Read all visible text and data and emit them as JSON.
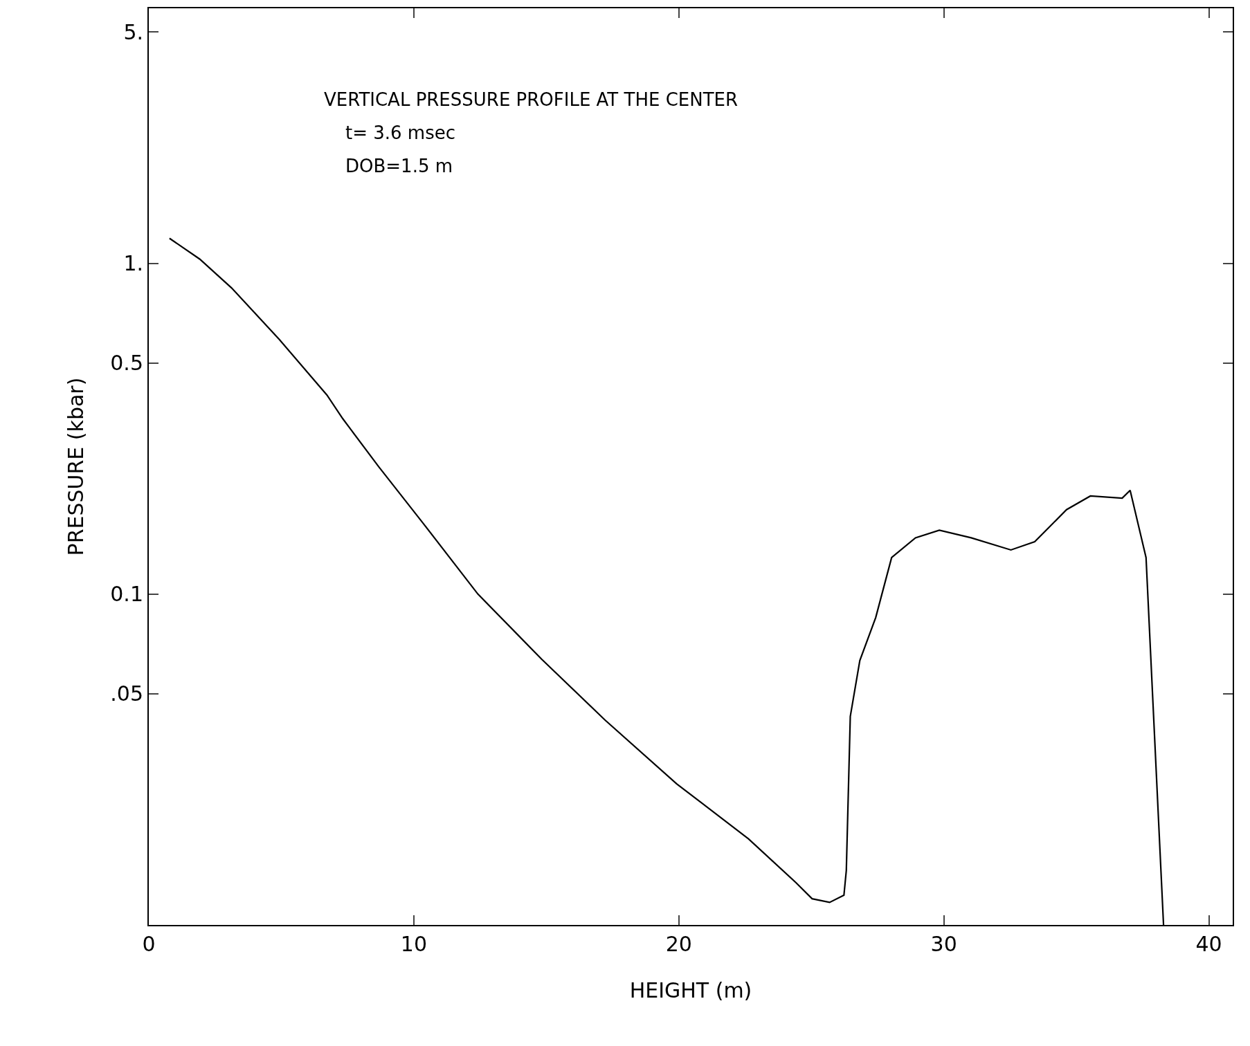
{
  "chart_data": {
    "type": "line",
    "xlabel": "HEIGHT (m)",
    "ylabel": "PRESSURE (kbar)",
    "annotations": [
      "VERTICAL PRESSURE PROFILE AT THE CENTER",
      "t= 3.6 msec",
      "DOB=1.5 m"
    ],
    "x": [
      0.78,
      1.92,
      3.12,
      4.92,
      6.72,
      7.32,
      8.67,
      10.32,
      12.42,
      14.82,
      17.22,
      19.92,
      22.63,
      24.43,
      25.03,
      25.69,
      26.23,
      26.32,
      26.47,
      26.83,
      27.43,
      28.03,
      28.93,
      29.83,
      31.03,
      32.53,
      33.43,
      34.63,
      35.53,
      36.73,
      37.03,
      37.63,
      38.29
    ],
    "series": [
      {
        "color": "#000000",
        "values": [
          1.19,
          1.03,
          0.843,
          0.589,
          0.4,
          0.339,
          0.243,
          0.165,
          0.1,
          0.0636,
          0.0416,
          0.0267,
          0.0182,
          0.0134,
          0.012,
          0.0117,
          0.0123,
          0.0146,
          0.0427,
          0.063,
          0.085,
          0.129,
          0.148,
          0.156,
          0.148,
          0.136,
          0.144,
          0.18,
          0.198,
          0.195,
          0.206,
          0.129,
          0.01
        ]
      }
    ],
    "log": "y",
    "xlim": [
      0,
      40.9
    ],
    "ylim": [
      0.01,
      5.9
    ],
    "xticks": [
      0,
      10,
      20,
      30,
      40
    ],
    "yticks": [
      {
        "value": 5,
        "label": "5."
      },
      {
        "value": 1,
        "label": "1."
      },
      0.5,
      0.1,
      {
        "value": 0.05,
        "label": ".05"
      }
    ],
    "legend": false,
    "marker": "none",
    "line_style": "solid"
  }
}
